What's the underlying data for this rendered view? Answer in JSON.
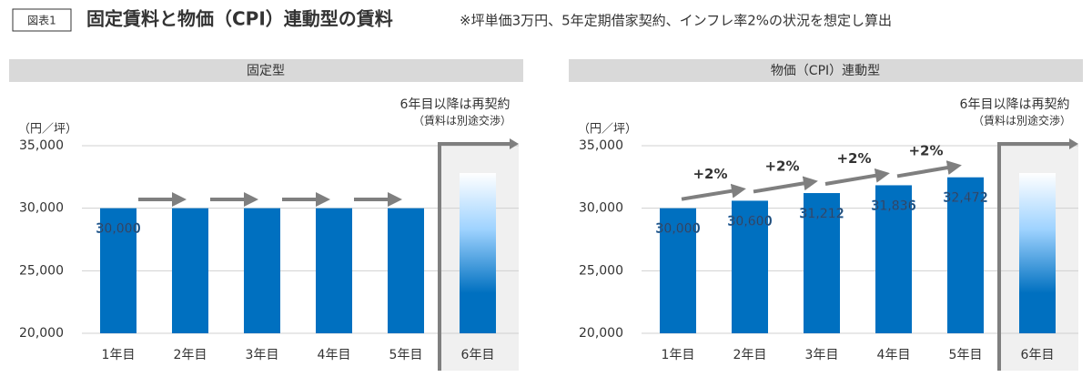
{
  "header": {
    "figure_label": "図表1",
    "title": "固定賃料と物価（CPI）連動型の賃料",
    "note": "※坪単価3万円、5年定期借家契約、インフレ率2%の状況を想定し算出"
  },
  "chart_data": [
    {
      "type": "bar",
      "title": "固定型",
      "y_label": "（円／坪）",
      "categories": [
        "1年目",
        "2年目",
        "3年目",
        "4年目",
        "5年目",
        "6年目"
      ],
      "values": [
        30000,
        30000,
        30000,
        30000,
        30000,
        null
      ],
      "value_labels": [
        "30,000",
        null,
        null,
        null,
        null,
        null
      ],
      "color": "#0070c0",
      "ylim": [
        20000,
        35000
      ],
      "yticks": [
        {
          "value": 20000,
          "label": "20,000"
        },
        {
          "value": 25000,
          "label": "25,000"
        },
        {
          "value": 30000,
          "label": "30,000"
        },
        {
          "value": 35000,
          "label": "35,000"
        }
      ],
      "grid": true,
      "annotations": [
        "6年目以降は再契約",
        "（賃料は別途交渉）"
      ]
    },
    {
      "type": "bar",
      "title": "物価（CPI）連動型",
      "y_label": "（円／坪）",
      "categories": [
        "1年目",
        "2年目",
        "3年目",
        "4年目",
        "5年目",
        "6年目"
      ],
      "values": [
        30000,
        30600,
        31212,
        31836,
        32472,
        null
      ],
      "value_labels": [
        "30,000",
        "30,600",
        "31,212",
        "31,836",
        "32,472",
        null
      ],
      "color": "#0070c0",
      "ylim": [
        20000,
        35000
      ],
      "yticks": [
        {
          "value": 20000,
          "label": "20,000"
        },
        {
          "value": 25000,
          "label": "25,000"
        },
        {
          "value": 30000,
          "label": "30,000"
        },
        {
          "value": 35000,
          "label": "35,000"
        }
      ],
      "grid": true,
      "annotations": [
        "6年目以降は再契約",
        "（賃料は別途交渉）"
      ],
      "change_labels": [
        "+2%",
        "+2%",
        "+2%",
        "+2%"
      ]
    }
  ]
}
